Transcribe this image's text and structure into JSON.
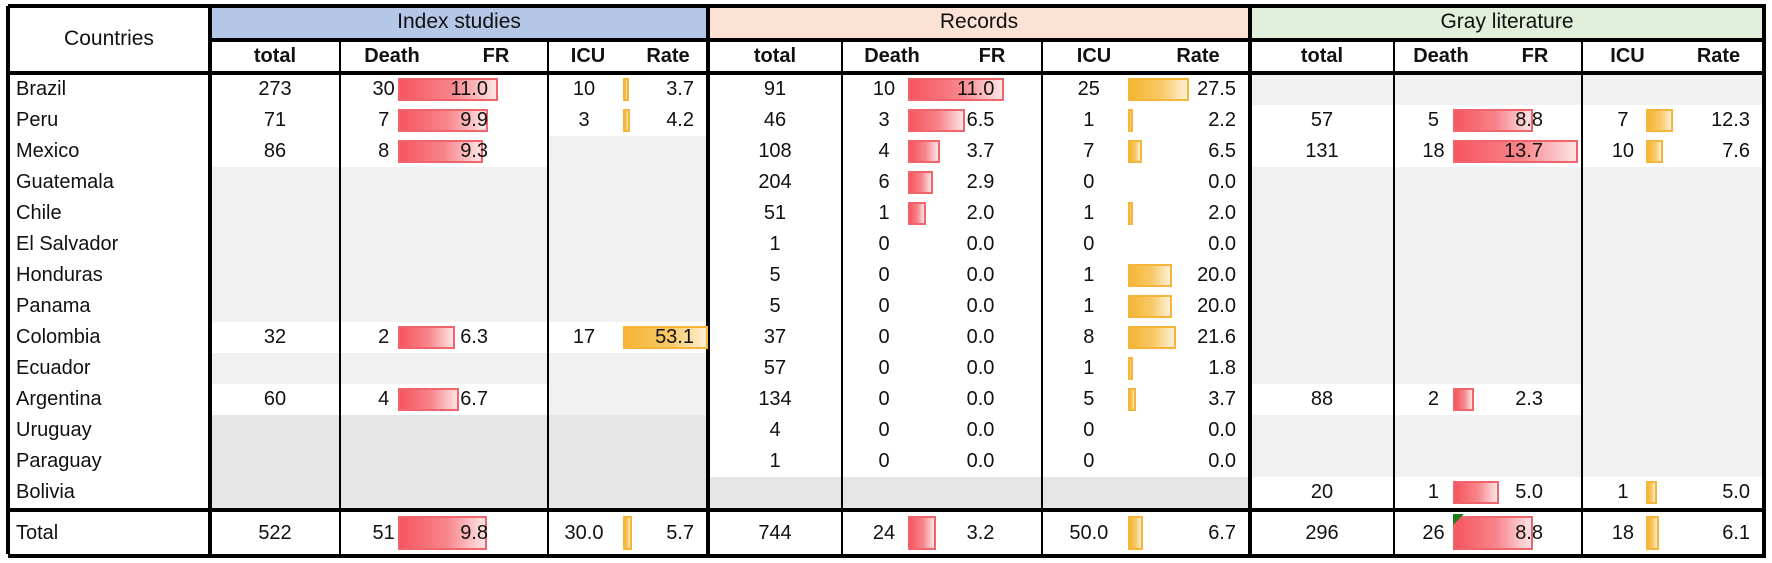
{
  "table": {
    "countries_header": "Countries",
    "groups": [
      {
        "name": "Index studies",
        "color": "#b4c7e7"
      },
      {
        "name": "Records",
        "color": "#fbe2d5"
      },
      {
        "name": "Gray literature",
        "color": "#e2efda"
      }
    ],
    "subheaders": [
      "total",
      "Death",
      "FR",
      "ICU",
      "Rate"
    ],
    "fr_bar_color": "#f6555f",
    "rate_bar_color": "#f6b534",
    "fr_scale_max": 13.7,
    "rate_scale_max": 53.1,
    "rows": [
      {
        "country": "Brazil",
        "index": {
          "total": "273",
          "death": "30",
          "fr": "11.0",
          "icu": "10",
          "rate": "3.7"
        },
        "records": {
          "total": "91",
          "death": "10",
          "fr": "11.0",
          "icu": "25",
          "rate": "27.5"
        },
        "gray": null
      },
      {
        "country": "Peru",
        "index": {
          "total": "71",
          "death": "7",
          "fr": "9.9",
          "icu": "3",
          "rate": "4.2"
        },
        "records": {
          "total": "46",
          "death": "3",
          "fr": "6.5",
          "icu": "1",
          "rate": "2.2"
        },
        "gray": {
          "total": "57",
          "death": "5",
          "fr": "8.8",
          "icu": "7",
          "rate": "12.3"
        }
      },
      {
        "country": "Mexico",
        "index": {
          "total": "86",
          "death": "8",
          "fr": "9.3",
          "icu": null,
          "rate": null
        },
        "records": {
          "total": "108",
          "death": "4",
          "fr": "3.7",
          "icu": "7",
          "rate": "6.5"
        },
        "gray": {
          "total": "131",
          "death": "18",
          "fr": "13.7",
          "icu": "10",
          "rate": "7.6"
        }
      },
      {
        "country": "Guatemala",
        "index": null,
        "records": {
          "total": "204",
          "death": "6",
          "fr": "2.9",
          "icu": "0",
          "rate": "0.0"
        },
        "gray": null
      },
      {
        "country": "Chile",
        "index": null,
        "records": {
          "total": "51",
          "death": "1",
          "fr": "2.0",
          "icu": "1",
          "rate": "2.0"
        },
        "gray": null
      },
      {
        "country": "El Salvador",
        "index": null,
        "records": {
          "total": "1",
          "death": "0",
          "fr": "0.0",
          "icu": "0",
          "rate": "0.0"
        },
        "gray": null
      },
      {
        "country": "Honduras",
        "index": null,
        "records": {
          "total": "5",
          "death": "0",
          "fr": "0.0",
          "icu": "1",
          "rate": "20.0"
        },
        "gray": null
      },
      {
        "country": "Panama",
        "index": null,
        "records": {
          "total": "5",
          "death": "0",
          "fr": "0.0",
          "icu": "1",
          "rate": "20.0"
        },
        "gray": null
      },
      {
        "country": "Colombia",
        "index": {
          "total": "32",
          "death": "2",
          "fr": "6.3",
          "icu": "17",
          "rate": "53.1"
        },
        "records": {
          "total": "37",
          "death": "0",
          "fr": "0.0",
          "icu": "8",
          "rate": "21.6"
        },
        "gray": null
      },
      {
        "country": "Ecuador",
        "index": null,
        "records": {
          "total": "57",
          "death": "0",
          "fr": "0.0",
          "icu": "1",
          "rate": "1.8"
        },
        "gray": null
      },
      {
        "country": "Argentina",
        "index": {
          "total": "60",
          "death": "4",
          "fr": "6.7",
          "icu": null,
          "rate": null
        },
        "records": {
          "total": "134",
          "death": "0",
          "fr": "0.0",
          "icu": "5",
          "rate": "3.7"
        },
        "gray": {
          "total": "88",
          "death": "2",
          "fr": "2.3",
          "icu": null,
          "rate": null
        }
      },
      {
        "country": "Uruguay",
        "index": null,
        "records": {
          "total": "4",
          "death": "0",
          "fr": "0.0",
          "icu": "0",
          "rate": "0.0"
        },
        "gray": null
      },
      {
        "country": "Paraguay",
        "index": null,
        "records": {
          "total": "1",
          "death": "0",
          "fr": "0.0",
          "icu": "0",
          "rate": "0.0"
        },
        "gray": null
      },
      {
        "country": "Bolivia",
        "index": null,
        "records": null,
        "gray": {
          "total": "20",
          "death": "1",
          "fr": "5.0",
          "icu": "1",
          "rate": "5.0"
        }
      }
    ],
    "total": {
      "country": "Total",
      "index": {
        "total": "522",
        "death": "51",
        "fr": "9.8",
        "icu": "30.0",
        "rate": "5.7"
      },
      "records": {
        "total": "744",
        "death": "24",
        "fr": "3.2",
        "icu": "50.0",
        "rate": "6.7"
      },
      "gray": {
        "total": "296",
        "death": "26",
        "fr": "8.8",
        "icu": "18",
        "rate": "6.1"
      }
    }
  }
}
